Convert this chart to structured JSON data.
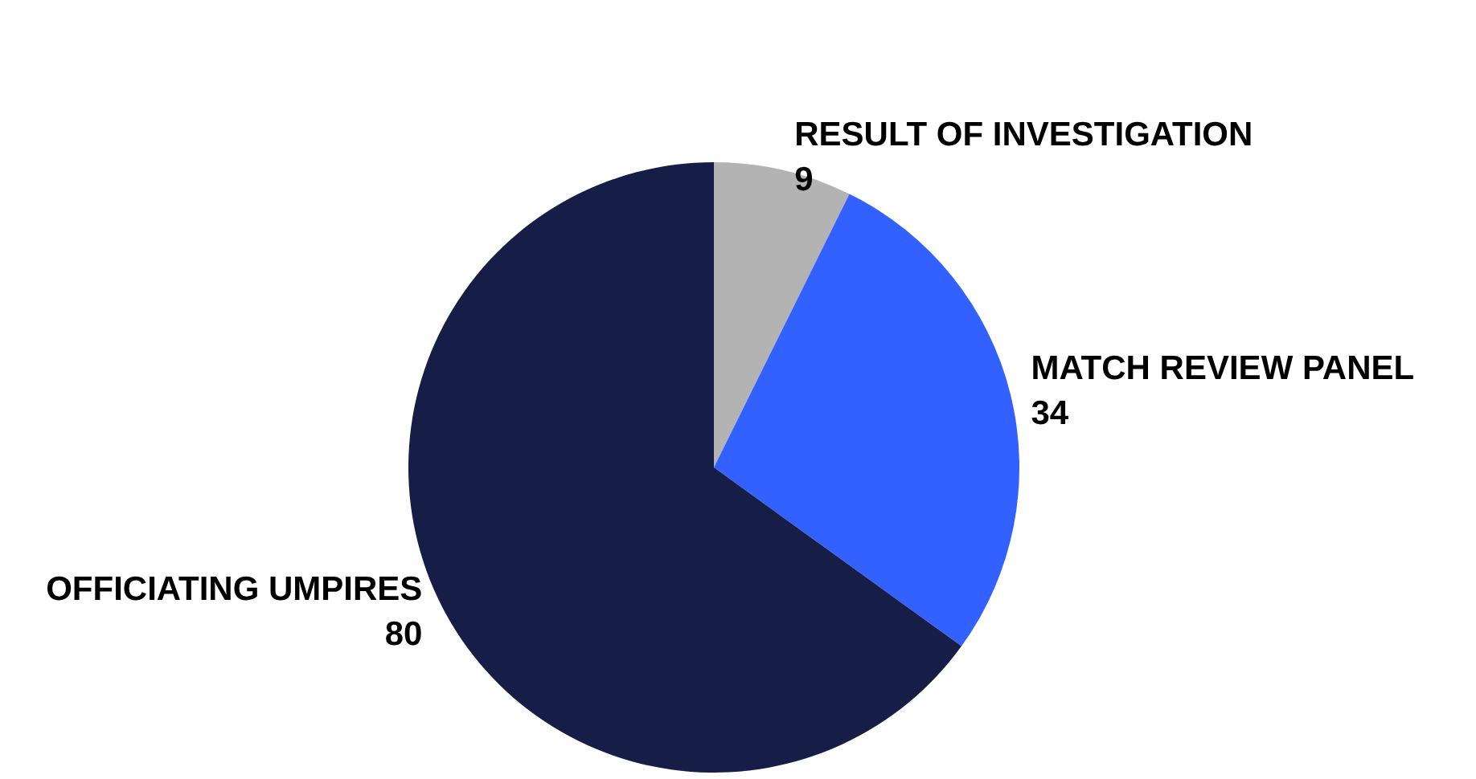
{
  "chart_data": {
    "type": "pie",
    "categories": [
      "RESULT OF INVESTIGATION",
      "MATCH REVIEW PANEL",
      "OFFICIATING UMPIRES"
    ],
    "values": [
      9,
      34,
      80
    ],
    "colors": [
      "#b3b3b3",
      "#3361ff",
      "#161e48"
    ],
    "data_labels": true,
    "legend": false
  }
}
